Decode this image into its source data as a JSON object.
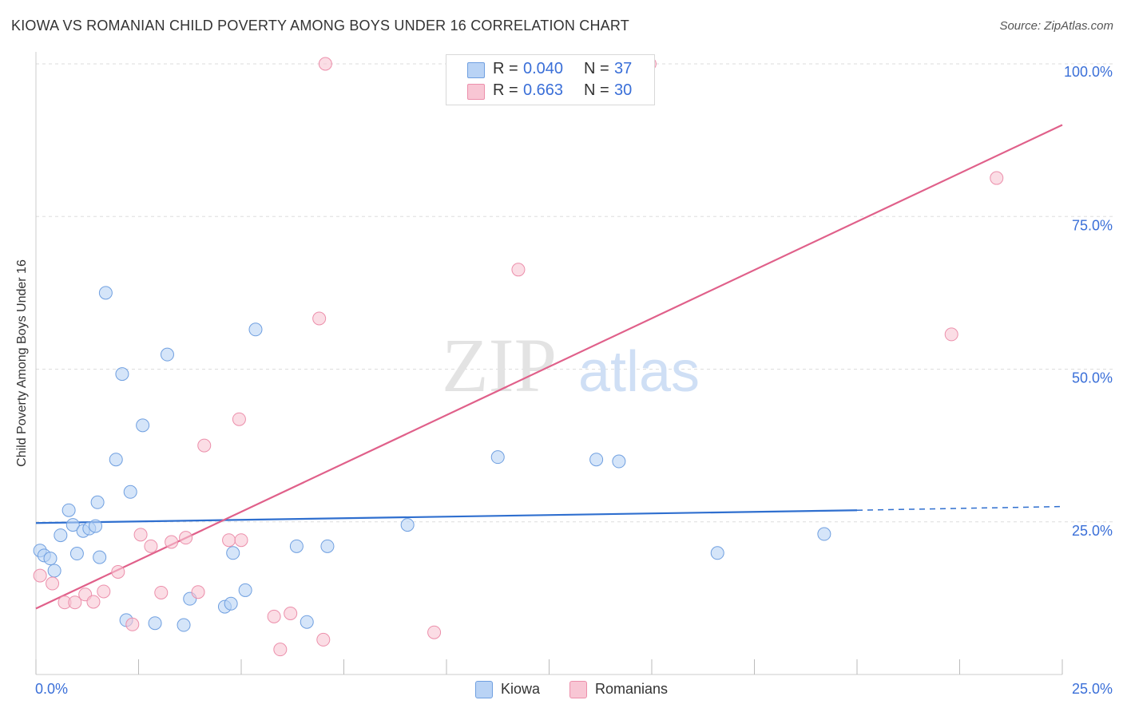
{
  "header": {
    "title": "KIOWA VS ROMANIAN CHILD POVERTY AMONG BOYS UNDER 16 CORRELATION CHART",
    "source": "Source: ZipAtlas.com"
  },
  "watermark": {
    "zip": "ZIP",
    "atlas": "atlas"
  },
  "legend": {
    "kiowa": {
      "r_label": "R =",
      "r_value": "0.040",
      "n_label": "N =",
      "n_value": "37",
      "name": "Kiowa"
    },
    "romanians": {
      "r_label": "R =",
      "r_value": "0.663",
      "n_label": "N =",
      "n_value": "30",
      "name": "Romanians"
    }
  },
  "colors": {
    "kiowa_fill": "#b9d3f5",
    "kiowa_stroke": "#6f9fe0",
    "kiowa_line": "#2f6fcf",
    "romanians_fill": "#f8c6d4",
    "romanians_stroke": "#ec8fab",
    "romanians_line": "#e0608a",
    "tick_label": "#3a6fd8",
    "grid": "#dddddd"
  },
  "chart_data": {
    "type": "scatter",
    "title": "KIOWA VS ROMANIAN CHILD POVERTY AMONG BOYS UNDER 16 CORRELATION CHART",
    "xlabel": "",
    "ylabel": "Child Poverty Among Boys Under 16",
    "xlim": [
      0,
      25
    ],
    "ylim": [
      0,
      100
    ],
    "x_tick_labels": [
      "0.0%",
      "25.0%"
    ],
    "y_ticks": [
      25,
      50,
      75,
      100
    ],
    "y_tick_labels": [
      "25.0%",
      "50.0%",
      "75.0%",
      "100.0%"
    ],
    "grid": true,
    "legend_position": "top-center",
    "series": [
      {
        "name": "Kiowa",
        "points": [
          [
            0.1,
            20.3
          ],
          [
            0.2,
            19.5
          ],
          [
            0.35,
            19.0
          ],
          [
            0.45,
            17.0
          ],
          [
            0.6,
            22.8
          ],
          [
            0.8,
            26.9
          ],
          [
            0.9,
            24.5
          ],
          [
            1.0,
            19.8
          ],
          [
            1.15,
            23.5
          ],
          [
            1.3,
            23.9
          ],
          [
            1.45,
            24.3
          ],
          [
            1.5,
            28.2
          ],
          [
            1.55,
            19.2
          ],
          [
            1.7,
            62.5
          ],
          [
            1.95,
            35.2
          ],
          [
            2.1,
            49.2
          ],
          [
            2.2,
            8.9
          ],
          [
            2.3,
            29.9
          ],
          [
            2.6,
            40.8
          ],
          [
            2.9,
            8.4
          ],
          [
            3.2,
            52.4
          ],
          [
            3.6,
            8.1
          ],
          [
            3.75,
            12.4
          ],
          [
            4.6,
            11.1
          ],
          [
            4.75,
            11.6
          ],
          [
            4.8,
            19.9
          ],
          [
            5.1,
            13.8
          ],
          [
            5.35,
            56.5
          ],
          [
            6.35,
            21.0
          ],
          [
            6.6,
            8.6
          ],
          [
            7.1,
            21.0
          ],
          [
            9.05,
            24.5
          ],
          [
            11.25,
            35.6
          ],
          [
            13.65,
            35.2
          ],
          [
            14.2,
            34.9
          ],
          [
            16.6,
            19.9
          ],
          [
            19.2,
            23.0
          ]
        ]
      },
      {
        "name": "Romanians",
        "points": [
          [
            0.1,
            16.2
          ],
          [
            0.4,
            14.9
          ],
          [
            0.7,
            11.8
          ],
          [
            0.95,
            11.8
          ],
          [
            1.2,
            13.1
          ],
          [
            1.4,
            11.9
          ],
          [
            1.65,
            13.6
          ],
          [
            2.0,
            16.8
          ],
          [
            2.35,
            8.2
          ],
          [
            2.55,
            22.9
          ],
          [
            2.8,
            21.0
          ],
          [
            3.05,
            13.4
          ],
          [
            3.3,
            21.7
          ],
          [
            3.65,
            22.4
          ],
          [
            3.95,
            13.5
          ],
          [
            4.1,
            37.5
          ],
          [
            4.7,
            22.0
          ],
          [
            4.95,
            41.8
          ],
          [
            5.0,
            22.0
          ],
          [
            5.8,
            9.5
          ],
          [
            5.95,
            4.1
          ],
          [
            6.2,
            10.0
          ],
          [
            6.9,
            58.3
          ],
          [
            7.0,
            5.7
          ],
          [
            7.05,
            100.0
          ],
          [
            9.7,
            6.9
          ],
          [
            11.75,
            66.3
          ],
          [
            14.95,
            100.0
          ],
          [
            22.3,
            55.7
          ],
          [
            23.4,
            81.3
          ]
        ]
      }
    ],
    "trend_lines": [
      {
        "name": "Kiowa",
        "start": [
          0,
          24.8
        ],
        "end": [
          20.0,
          26.9
        ],
        "dashed_to": [
          25.0,
          27.5
        ]
      },
      {
        "name": "Romanians",
        "start": [
          0,
          10.8
        ],
        "end": [
          25.0,
          90.0
        ]
      }
    ]
  }
}
